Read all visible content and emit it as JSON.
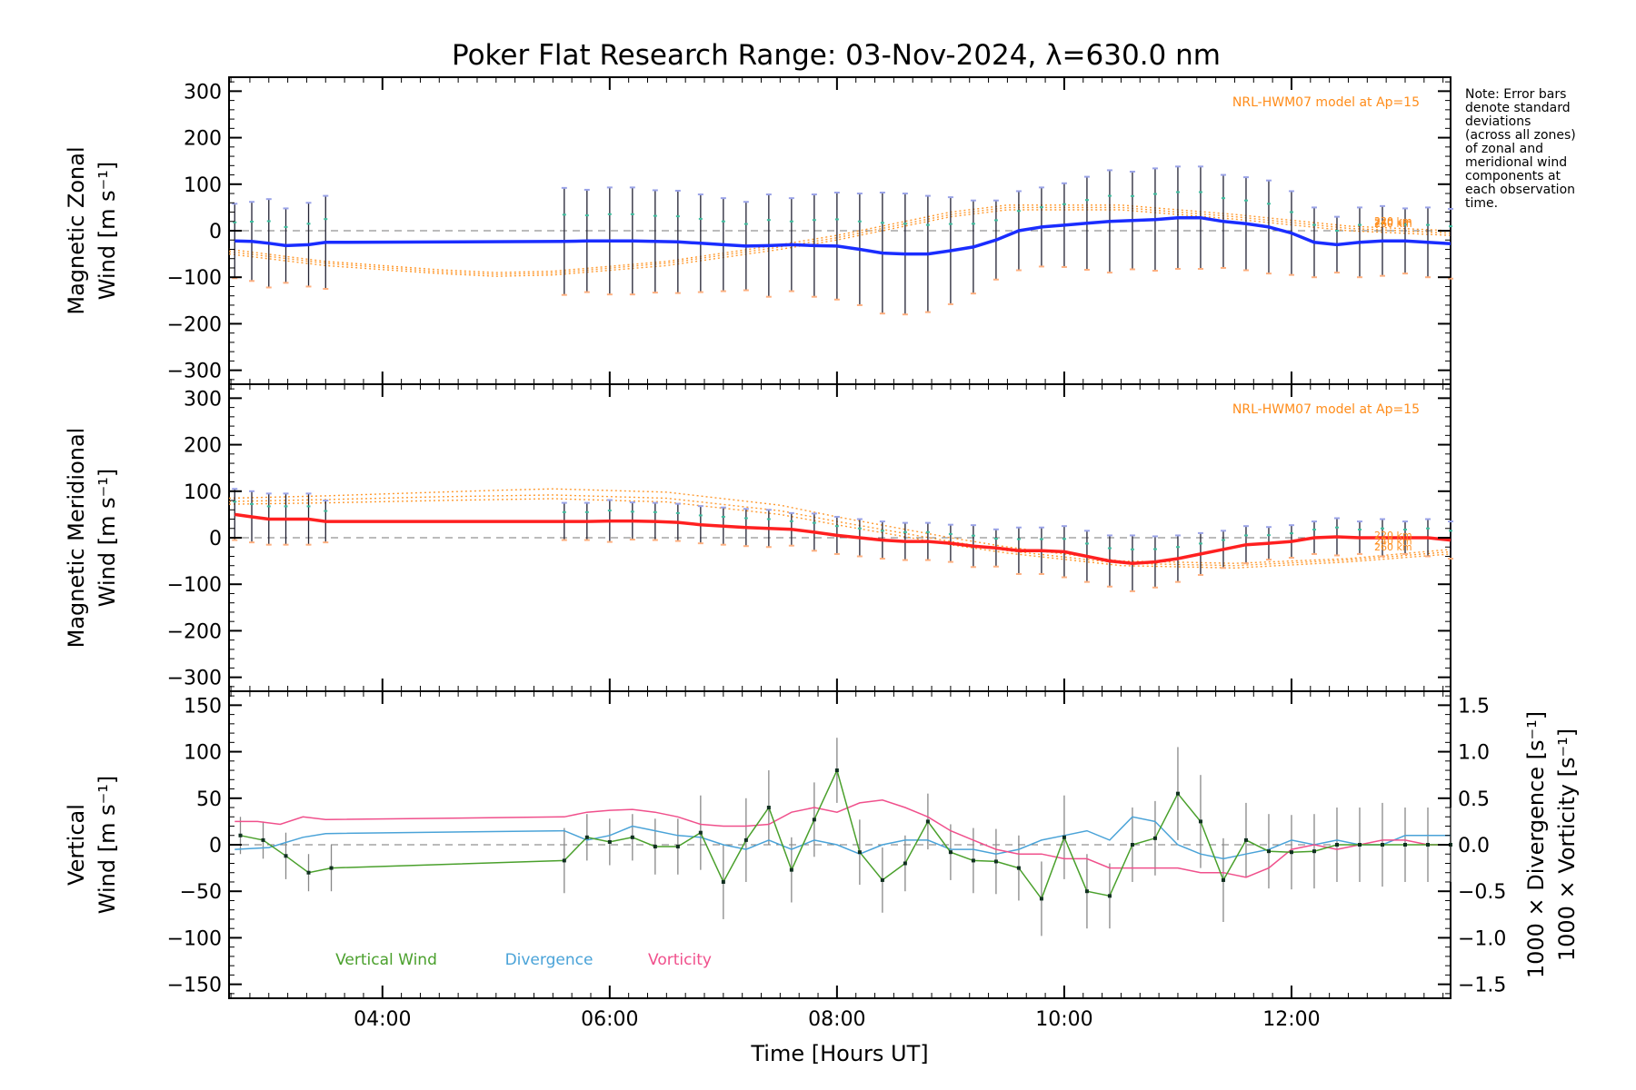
{
  "chart_data": {
    "type": "line",
    "title": "Poker Flat Research Range: 03-Nov-2024, λ=630.0 nm",
    "xlabel": "Time [Hours UT]",
    "xlim": [
      2.65,
      13.4
    ],
    "xticks": [
      4,
      6,
      8,
      10,
      12
    ],
    "xtick_labels": [
      "04:00",
      "06:00",
      "08:00",
      "10:00",
      "12:00"
    ],
    "note": [
      "Note: Error bars",
      "denote standard",
      "deviations",
      "(across all zones)",
      "of zonal and",
      "meridional wind",
      "components at",
      "each observation",
      "time."
    ],
    "panels": [
      {
        "id": "zonal",
        "ylabel": [
          "Magnetic Zonal",
          "Wind [m s⁻¹]"
        ],
        "ylim": [
          -330,
          330
        ],
        "yticks": [
          -300,
          -200,
          -100,
          0,
          100,
          200,
          300
        ],
        "ytick_labels": [
          "−300",
          "−200",
          "−100",
          "0",
          "100",
          "200",
          "300"
        ],
        "model_label": "NRL-HWM07 model at Ap=15",
        "altitude_labels": [
          "220 km",
          "240 km",
          "260 km"
        ],
        "color": "#1a2dff",
        "x": [
          2.7,
          2.85,
          3.0,
          3.15,
          3.35,
          3.5,
          5.6,
          5.8,
          6.0,
          6.2,
          6.4,
          6.6,
          6.8,
          7.0,
          7.2,
          7.4,
          7.6,
          7.8,
          8.0,
          8.2,
          8.4,
          8.6,
          8.8,
          9.0,
          9.2,
          9.4,
          9.6,
          9.8,
          10.0,
          10.2,
          10.4,
          10.6,
          10.8,
          11.0,
          11.2,
          11.4,
          11.6,
          11.8,
          12.0,
          12.2,
          12.4,
          12.6,
          12.8,
          13.0,
          13.2,
          13.4
        ],
        "y": [
          -22,
          -23,
          -27,
          -32,
          -30,
          -25,
          -23,
          -22,
          -22,
          -22,
          -23,
          -24,
          -27,
          -30,
          -33,
          -32,
          -30,
          -32,
          -33,
          -40,
          -48,
          -50,
          -50,
          -43,
          -35,
          -20,
          0,
          8,
          12,
          16,
          20,
          22,
          24,
          28,
          28,
          20,
          15,
          8,
          -5,
          -25,
          -30,
          -25,
          -22,
          -22,
          -25,
          -28
        ],
        "err": [
          80,
          85,
          95,
          80,
          90,
          100,
          115,
          110,
          115,
          115,
          110,
          110,
          105,
          100,
          95,
          110,
          100,
          110,
          115,
          120,
          130,
          130,
          125,
          115,
          100,
          85,
          85,
          85,
          90,
          100,
          110,
          105,
          110,
          110,
          110,
          100,
          100,
          100,
          90,
          75,
          60,
          75,
          75,
          70,
          75,
          75
        ],
        "model_x": [
          2.65,
          3.5,
          4.5,
          5.0,
          5.5,
          6.5,
          7.5,
          8.0,
          9.0,
          9.5,
          10.5,
          11.5,
          12.5,
          13.4
        ],
        "model_series": [
          {
            "name": "220 km",
            "values": [
              -50,
              -75,
              -92,
              -98,
              -95,
              -75,
              -40,
              -20,
              30,
              45,
              45,
              25,
              0,
              -10
            ]
          },
          {
            "name": "240 km",
            "values": [
              -45,
              -70,
              -88,
              -94,
              -91,
              -70,
              -35,
              -15,
              35,
              50,
              50,
              30,
              5,
              -5
            ]
          },
          {
            "name": "260 km",
            "values": [
              -40,
              -66,
              -84,
              -90,
              -87,
              -66,
              -30,
              -10,
              40,
              55,
              55,
              35,
              10,
              0
            ]
          }
        ]
      },
      {
        "id": "meridional",
        "ylabel": [
          "Magnetic Meridional",
          "Wind [m s⁻¹]"
        ],
        "ylim": [
          -330,
          330
        ],
        "yticks": [
          -300,
          -200,
          -100,
          0,
          100,
          200,
          300
        ],
        "ytick_labels": [
          "−300",
          "−200",
          "−100",
          "0",
          "100",
          "200",
          "300"
        ],
        "model_label": "NRL-HWM07 model at Ap=15",
        "altitude_labels": [
          "220 km",
          "240 km",
          "260 km"
        ],
        "color": "#ff2020",
        "x": [
          2.7,
          2.85,
          3.0,
          3.15,
          3.35,
          3.5,
          5.6,
          5.8,
          6.0,
          6.2,
          6.4,
          6.6,
          6.8,
          7.0,
          7.2,
          7.4,
          7.6,
          7.8,
          8.0,
          8.2,
          8.4,
          8.6,
          8.8,
          9.0,
          9.2,
          9.4,
          9.6,
          9.8,
          10.0,
          10.2,
          10.4,
          10.6,
          10.8,
          11.0,
          11.2,
          11.4,
          11.6,
          11.8,
          12.0,
          12.2,
          12.4,
          12.6,
          12.8,
          13.0,
          13.2,
          13.4
        ],
        "y": [
          50,
          45,
          40,
          40,
          40,
          35,
          35,
          35,
          36,
          36,
          35,
          33,
          28,
          25,
          22,
          20,
          18,
          12,
          5,
          0,
          -5,
          -8,
          -8,
          -12,
          -18,
          -22,
          -28,
          -28,
          -30,
          -40,
          -50,
          -55,
          -52,
          -45,
          -35,
          -25,
          -15,
          -12,
          -8,
          0,
          2,
          0,
          0,
          0,
          0,
          -5
        ],
        "err": [
          55,
          55,
          55,
          55,
          55,
          45,
          40,
          40,
          45,
          40,
          40,
          40,
          40,
          40,
          40,
          40,
          35,
          40,
          40,
          40,
          40,
          40,
          40,
          40,
          45,
          40,
          50,
          50,
          55,
          55,
          55,
          60,
          55,
          50,
          45,
          40,
          40,
          35,
          35,
          35,
          40,
          35,
          40,
          35,
          40,
          40
        ],
        "model_x": [
          2.65,
          3.5,
          4.5,
          5.0,
          5.5,
          6.5,
          7.5,
          8.0,
          9.0,
          9.5,
          10.5,
          11.5,
          12.5,
          13.4
        ],
        "model_series": [
          {
            "name": "220 km",
            "values": [
              85,
              90,
              98,
              102,
              105,
              98,
              70,
              45,
              0,
              -20,
              -50,
              -55,
              -45,
              -25
            ]
          },
          {
            "name": "240 km",
            "values": [
              78,
              82,
              88,
              90,
              92,
              85,
              58,
              35,
              -8,
              -28,
              -55,
              -60,
              -48,
              -30
            ]
          },
          {
            "name": "260 km",
            "values": [
              72,
              75,
              80,
              82,
              84,
              77,
              50,
              28,
              -15,
              -33,
              -60,
              -65,
              -52,
              -35
            ]
          }
        ]
      },
      {
        "id": "vertical",
        "ylabel": [
          "Vertical",
          "Wind [m s⁻¹]"
        ],
        "ylim": [
          -165,
          165
        ],
        "yticks": [
          -150,
          -100,
          -50,
          0,
          50,
          100,
          150
        ],
        "ytick_labels": [
          "−150",
          "−100",
          "−50",
          "0",
          "50",
          "100",
          "150"
        ],
        "y2lim": [
          -1.65,
          1.65
        ],
        "y2ticks": [
          -1.5,
          -1.0,
          -0.5,
          0.0,
          0.5,
          1.0,
          1.5
        ],
        "y2tick_labels": [
          "−1.5",
          "−1.0",
          "−0.5",
          "0.0",
          "0.5",
          "1.0",
          "1.5"
        ],
        "y2labels": [
          {
            "text": "1000 × Divergence [s⁻¹]",
            "color": "#4aa3d8"
          },
          {
            "text": "1000 × Vorticity [s⁻¹]",
            "color": "#f0508c"
          }
        ],
        "legend": [
          {
            "label": "Vertical Wind",
            "color": "#4aa02c"
          },
          {
            "label": "Divergence",
            "color": "#4aa3d8"
          },
          {
            "label": "Vorticity",
            "color": "#f0508c"
          }
        ],
        "vertical_wind": {
          "x": [
            2.75,
            2.95,
            3.15,
            3.35,
            3.55,
            5.6,
            5.8,
            6.0,
            6.2,
            6.4,
            6.6,
            6.8,
            7.0,
            7.2,
            7.4,
            7.6,
            7.8,
            8.0,
            8.2,
            8.4,
            8.6,
            8.8,
            9.0,
            9.2,
            9.4,
            9.6,
            9.8,
            10.0,
            10.2,
            10.4,
            10.6,
            10.8,
            11.0,
            11.2,
            11.4,
            11.6,
            11.8,
            12.0,
            12.2,
            12.4,
            12.6,
            12.8,
            13.0,
            13.2,
            13.4
          ],
          "y": [
            10,
            5,
            -12,
            -30,
            -25,
            -17,
            8,
            3,
            8,
            -2,
            -2,
            13,
            -40,
            5,
            40,
            -27,
            27,
            80,
            -8,
            -38,
            -20,
            25,
            -8,
            -17,
            -18,
            -25,
            -58,
            8,
            -50,
            -55,
            0,
            7,
            55,
            25,
            -38,
            5,
            -7,
            -8,
            -7,
            0,
            0,
            0,
            0,
            0,
            0
          ],
          "err": [
            20,
            20,
            25,
            20,
            25,
            35,
            25,
            25,
            25,
            30,
            30,
            40,
            40,
            45,
            40,
            35,
            40,
            35,
            35,
            35,
            30,
            30,
            30,
            35,
            35,
            35,
            40,
            45,
            40,
            35,
            40,
            40,
            50,
            50,
            45,
            40,
            40,
            40,
            40,
            40,
            40,
            45,
            40,
            40,
            40
          ]
        },
        "divergence": {
          "x": [
            2.7,
            3.0,
            3.3,
            3.5,
            5.6,
            5.8,
            6.0,
            6.2,
            6.4,
            6.6,
            6.8,
            7.0,
            7.2,
            7.4,
            7.6,
            7.8,
            8.0,
            8.2,
            8.4,
            8.6,
            8.8,
            9.0,
            9.2,
            9.4,
            9.6,
            9.8,
            10.0,
            10.2,
            10.4,
            10.6,
            10.8,
            11.0,
            11.2,
            11.4,
            11.6,
            11.8,
            12.0,
            12.2,
            12.4,
            12.6,
            12.8,
            13.0,
            13.2,
            13.4
          ],
          "y": [
            -0.05,
            -0.03,
            0.08,
            0.12,
            0.15,
            0.05,
            0.1,
            0.2,
            0.15,
            0.1,
            0.08,
            0.0,
            -0.05,
            0.05,
            -0.05,
            0.05,
            0.0,
            -0.1,
            0.0,
            0.05,
            0.05,
            -0.05,
            -0.05,
            -0.1,
            -0.05,
            0.05,
            0.1,
            0.15,
            0.05,
            0.3,
            0.25,
            0.0,
            -0.1,
            -0.15,
            -0.1,
            -0.05,
            0.05,
            0.0,
            0.05,
            0.0,
            0.0,
            0.1,
            0.1,
            0.1
          ]
        },
        "vorticity": {
          "x": [
            2.7,
            2.9,
            3.1,
            3.3,
            3.5,
            5.6,
            5.8,
            6.0,
            6.2,
            6.4,
            6.6,
            6.8,
            7.0,
            7.2,
            7.4,
            7.6,
            7.8,
            8.0,
            8.2,
            8.4,
            8.6,
            8.8,
            9.0,
            9.2,
            9.4,
            9.6,
            9.8,
            10.0,
            10.2,
            10.4,
            10.6,
            10.8,
            11.0,
            11.2,
            11.4,
            11.6,
            11.8,
            12.0,
            12.2,
            12.4,
            12.6,
            12.8,
            13.0,
            13.2,
            13.4
          ],
          "y": [
            0.25,
            0.25,
            0.22,
            0.3,
            0.27,
            0.3,
            0.35,
            0.37,
            0.38,
            0.35,
            0.3,
            0.22,
            0.2,
            0.2,
            0.22,
            0.35,
            0.4,
            0.35,
            0.45,
            0.48,
            0.4,
            0.3,
            0.15,
            0.05,
            -0.05,
            -0.1,
            -0.1,
            -0.15,
            -0.15,
            -0.25,
            -0.25,
            -0.25,
            -0.25,
            -0.3,
            -0.3,
            -0.35,
            -0.25,
            -0.05,
            0.0,
            -0.05,
            0.0,
            0.05,
            0.05,
            0.0,
            0.0
          ]
        }
      }
    ]
  }
}
